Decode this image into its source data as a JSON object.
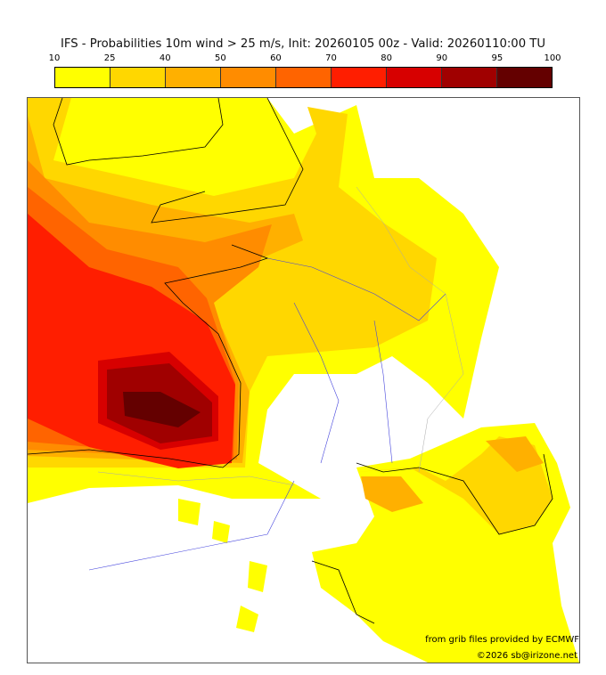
{
  "title": "IFS - Probabilities 10m wind > 25 m/s, Init: 20260105 00z - Valid: 20260110:00 TU",
  "colorbar": {
    "ticks": [
      "10",
      "25",
      "40",
      "50",
      "60",
      "70",
      "80",
      "90",
      "95",
      "100"
    ],
    "colors": [
      "#ffff00",
      "#ffd700",
      "#ffb000",
      "#ff8c00",
      "#ff6400",
      "#ff1e00",
      "#d70000",
      "#a00000",
      "#640000"
    ]
  },
  "credits": {
    "source": "from grib files provided by ECMWF",
    "copyright": "©2026 sb@irizone.net"
  }
}
